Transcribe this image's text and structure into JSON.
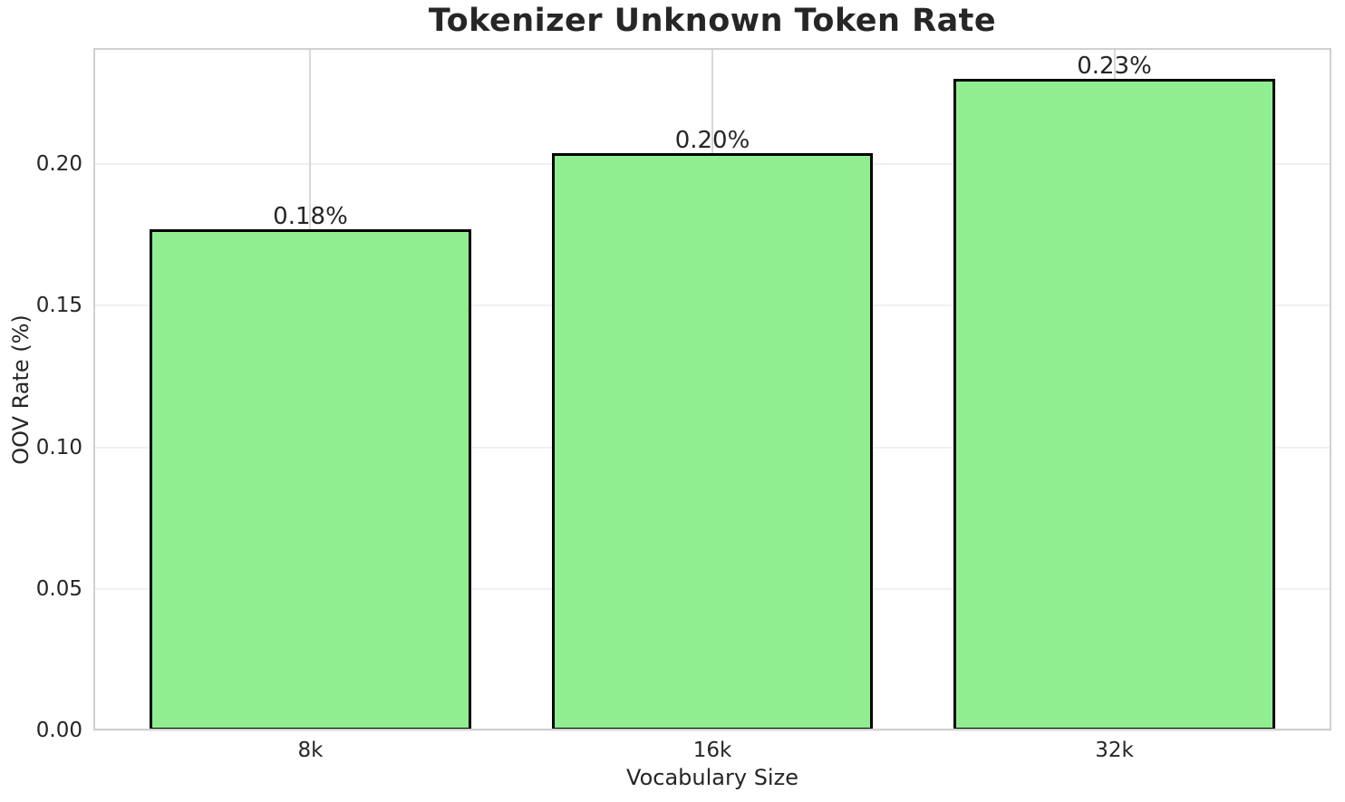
{
  "figure": {
    "background": "#ffffff"
  },
  "chart_data": {
    "type": "bar",
    "title": "Tokenizer Unknown Token Rate",
    "xlabel": "Vocabulary Size",
    "ylabel": "OOV Rate (%)",
    "categories": [
      "8k",
      "16k",
      "32k"
    ],
    "values": [
      0.177,
      0.204,
      0.23
    ],
    "bar_labels": [
      "0.18%",
      "0.20%",
      "0.23%"
    ],
    "yticks": [
      0.0,
      0.05,
      0.1,
      0.15,
      0.2
    ],
    "ytick_labels": [
      "0.00",
      "0.05",
      "0.10",
      "0.15",
      "0.20"
    ],
    "ylim": [
      0,
      0.241
    ],
    "grid": "both",
    "legend": "none",
    "bar_width_fraction": 0.8,
    "colors": {
      "bar_fill": "#90EE90",
      "bar_edge": "#000000",
      "grid_vertical": "#d8d8d8",
      "grid_horizontal": "#f0f0f0",
      "spine": "#d0d0d0",
      "text": "#262626"
    }
  }
}
